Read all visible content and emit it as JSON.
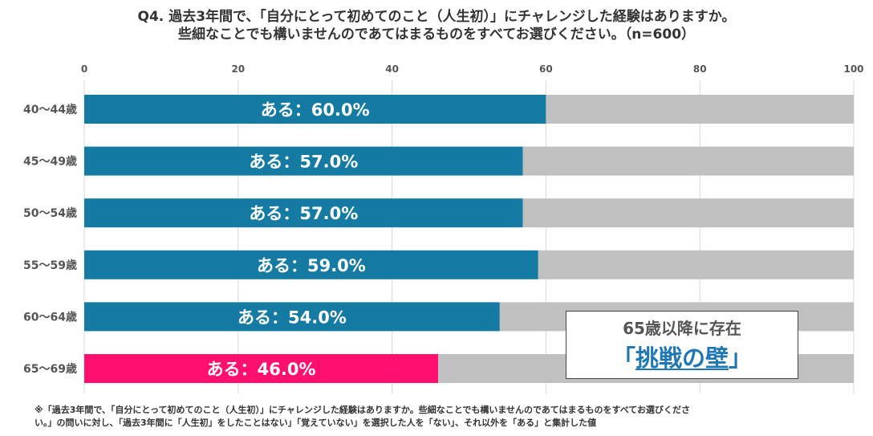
{
  "title_line1": "Q4.  過去3年間で、「自分にとって初めてのこと（人生初）」にチャレンジした経験はありますか。",
  "title_line2": "些細なことでも構いませんのであてはまるものをすべてお選びください。（n=600）",
  "colors": {
    "blue": "#167ba3",
    "pink": "#ff0f6e",
    "gray": "#c0c0c0",
    "accent": "#1f78b4"
  },
  "chart_data": {
    "type": "bar",
    "orientation": "horizontal",
    "stacked": true,
    "xlim": [
      0,
      100
    ],
    "xticks": [
      "0",
      "20",
      "40",
      "60",
      "80",
      "100"
    ],
    "categories": [
      "40〜44歳",
      "45〜49歳",
      "50〜54歳",
      "55〜59歳",
      "60〜64歳",
      "65〜69歳"
    ],
    "series": [
      {
        "name": "ある",
        "values": [
          60.0,
          57.0,
          57.0,
          59.0,
          54.0,
          46.0
        ]
      },
      {
        "name": "ない",
        "values": [
          40.0,
          43.0,
          43.0,
          41.0,
          46.0,
          54.0
        ]
      }
    ],
    "labels": [
      "ある：60.0%",
      "ある：57.0%",
      "ある：57.0%",
      "ある：59.0%",
      "ある：54.0%",
      "ある：46.0%"
    ],
    "highlight_index": 5
  },
  "callout": {
    "line1": "65歳以降に存在",
    "open": "「",
    "emph": "挑戦の壁",
    "close": "」"
  },
  "footnote_line1": "※「過去3年間で、「自分にとって初めてのこと（人生初）」にチャレンジした経験はありますか。些細なことでも構いませんのであてはまるものをすべてお選びくださ",
  "footnote_line2": "い。」の問いに対し、「過去3年間に「人生初」をしたことはない」「覚えていない」を選択した人を「ない」、それ以外を「ある」と集計した値"
}
